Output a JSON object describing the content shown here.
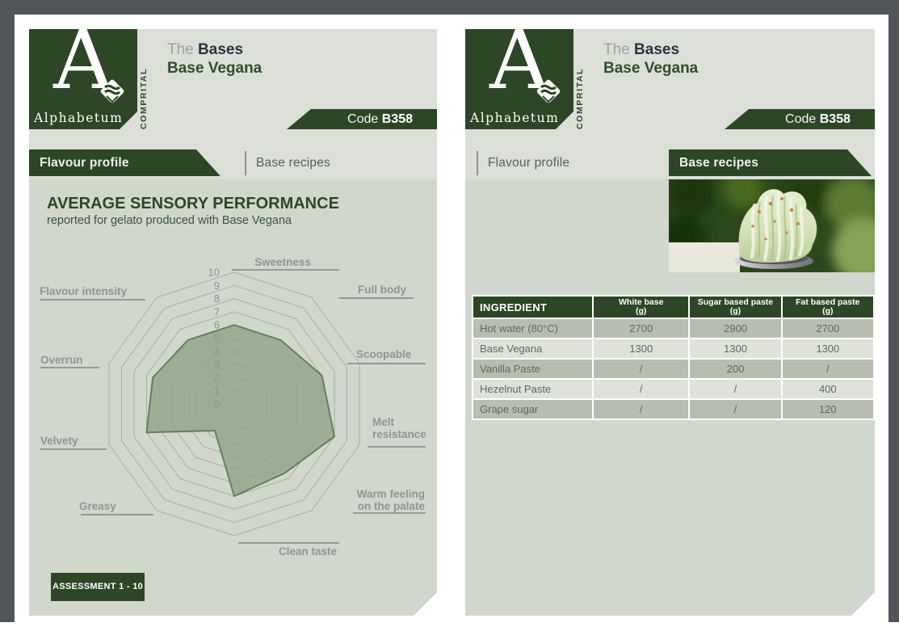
{
  "header": {
    "brand": "Alphabetum",
    "brand_letter": "A",
    "brand_vertical": "COMPRITAL",
    "series_prefix": "The",
    "series_name": "Bases",
    "product_name": "Base Vegana",
    "code_label": "Code",
    "code_value": "B358"
  },
  "tabs": {
    "flavour": "Flavour profile",
    "recipes": "Base recipes"
  },
  "left_panel": {
    "title": "AVERAGE SENSORY PERFORMANCE",
    "subtitle": "reported for gelato produced with Base Vegana",
    "assessment_badge": "ASSESSMENT 1 - 10"
  },
  "chart_data": {
    "type": "radar",
    "title": "AVERAGE SENSORY PERFORMANCE",
    "categories": [
      "Sweetness",
      "Full body",
      "Scoopable",
      "Melt resistance",
      "Warm feeling on the palate",
      "Clean taste",
      "Greasy",
      "Velvety",
      "Overrun",
      "Flavour intensity"
    ],
    "values": [
      6,
      6,
      7,
      8,
      6.5,
      7,
      2.5,
      7,
      6.5,
      6
    ],
    "scale": {
      "min": 0,
      "max": 10,
      "step": 1
    },
    "tick_labels": [
      "10",
      "9",
      "8",
      "7",
      "6",
      "5",
      "4",
      "3",
      "2",
      "1",
      "0"
    ],
    "grid": "concentric decagons, no spokes",
    "fill_color": "#95a78d",
    "stroke_color": "#64805a",
    "grid_color": "#a7b0a3"
  },
  "right_panel": {
    "table": {
      "columns": [
        {
          "label": "INGREDIENT",
          "unit": ""
        },
        {
          "label": "White base",
          "unit": "(g)"
        },
        {
          "label": "Sugar based paste",
          "unit": "(g)"
        },
        {
          "label": "Fat based paste",
          "unit": "(g)"
        }
      ],
      "rows": [
        [
          "Hot water (80°C)",
          "2700",
          "2900",
          "2700"
        ],
        [
          "Base Vegana",
          "1300",
          "1300",
          "1300"
        ],
        [
          "Vanilla Paste",
          "/",
          "200",
          "/"
        ],
        [
          "Hezelnut Paste",
          "/",
          "/",
          "400"
        ],
        [
          "Grape sugar",
          "/",
          "/",
          "120"
        ]
      ]
    }
  },
  "colors": {
    "accent_green": "#2d4626",
    "panel_header_bg": "#dbdfd8",
    "panel_body_bg": "#d2d7ce",
    "frame_gray": "#515459",
    "title_navy": "#2b3340",
    "product_green": "#2e4f2b",
    "table_row_dark": "#b7beb1",
    "table_row_light": "#dfe2da"
  }
}
